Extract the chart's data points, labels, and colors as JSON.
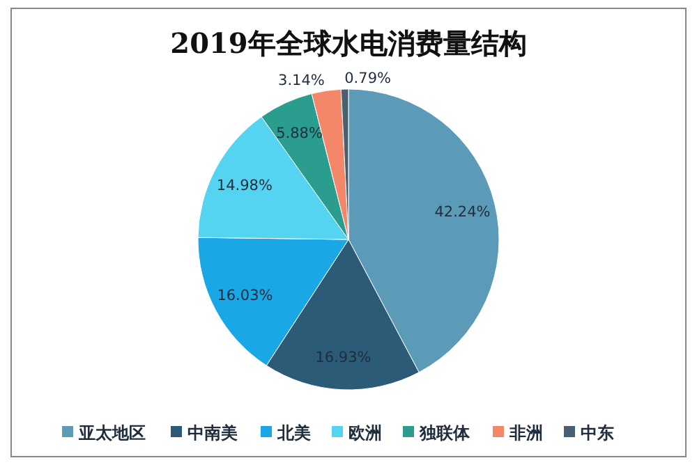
{
  "chart_data": {
    "type": "pie",
    "title": "2019年全球水电消费量结构",
    "categories": [
      "亚太地区",
      "中南美",
      "北美",
      "欧洲",
      "独联体",
      "非洲",
      "中东"
    ],
    "values": [
      42.24,
      16.93,
      16.03,
      14.98,
      5.88,
      3.14,
      0.79
    ],
    "colors": [
      "#5b9bb8",
      "#2c5b78",
      "#1aa7e6",
      "#55d4f2",
      "#2a9d8f",
      "#f4876a",
      "#4a6070"
    ],
    "value_labels": [
      "42.24%",
      "16.93%",
      "16.03%",
      "14.98%",
      "5.88%",
      "3.14%",
      "0.79%"
    ],
    "legend": "bottom"
  }
}
